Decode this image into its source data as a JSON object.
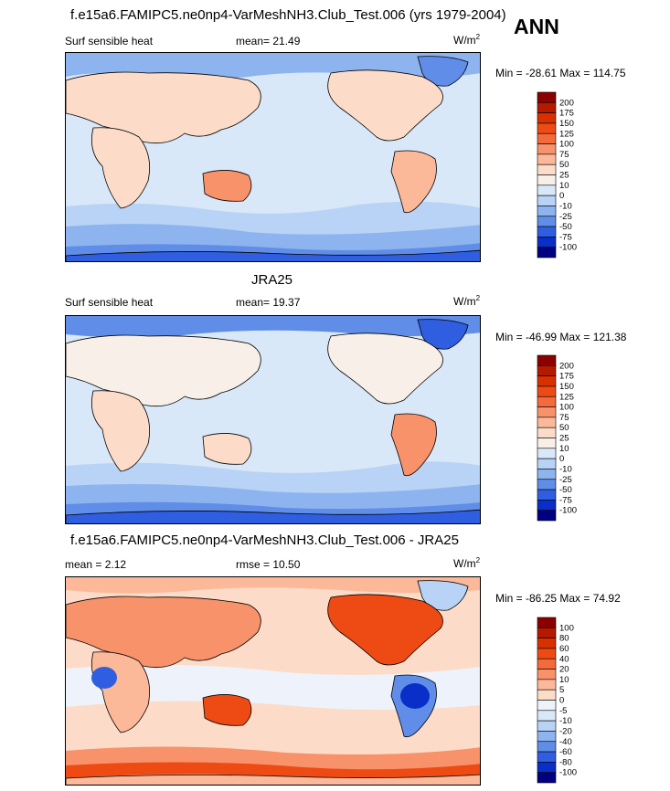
{
  "season": "ANN",
  "panels": [
    {
      "title": "f.e15a6.FAMIPC5.ne0np4-VarMeshNH3.Club_Test.006 (yrs 1979-2004)",
      "left_label": "Surf sensible heat",
      "center_label": "mean=  21.49",
      "units": "W/m",
      "units_sup": "2",
      "minmax": "Min = -28.61 Max = 114.75",
      "colorbar": {
        "levels": [
          "200",
          "175",
          "150",
          "125",
          "100",
          "75",
          "50",
          "25",
          "10",
          "0",
          "-10",
          "-25",
          "-50",
          "-75",
          "-100"
        ],
        "colors": [
          "#8b0000",
          "#b51a00",
          "#d93000",
          "#ed4a14",
          "#f46a3a",
          "#f8926a",
          "#fbb99a",
          "#fcdcc8",
          "#f7efe8",
          "#d9e8f8",
          "#b8d3f5",
          "#8db4ef",
          "#5f8de8",
          "#2f5fe0",
          "#0a2fc8",
          "#000080"
        ]
      }
    },
    {
      "title": "JRA25",
      "left_label": "Surf sensible heat",
      "center_label": "mean=  19.37",
      "units": "W/m",
      "units_sup": "2",
      "minmax": "Min = -46.99 Max = 121.38",
      "colorbar": {
        "levels": [
          "200",
          "175",
          "150",
          "125",
          "100",
          "75",
          "50",
          "25",
          "10",
          "0",
          "-10",
          "-25",
          "-50",
          "-75",
          "-100"
        ],
        "colors": [
          "#8b0000",
          "#b51a00",
          "#d93000",
          "#ed4a14",
          "#f46a3a",
          "#f8926a",
          "#fbb99a",
          "#fcdcc8",
          "#f7efe8",
          "#d9e8f8",
          "#b8d3f5",
          "#8db4ef",
          "#5f8de8",
          "#2f5fe0",
          "#0a2fc8",
          "#000080"
        ]
      }
    },
    {
      "title": "f.e15a6.FAMIPC5.ne0np4-VarMeshNH3.Club_Test.006 - JRA25",
      "left_label": "mean =   2.12",
      "center_label": "rmse =  10.50",
      "units": "W/m",
      "units_sup": "2",
      "minmax": "Min = -86.25 Max = 74.92",
      "colorbar": {
        "levels": [
          "100",
          "80",
          "60",
          "40",
          "20",
          "10",
          "5",
          "0",
          "-5",
          "-10",
          "-20",
          "-40",
          "-60",
          "-80",
          "-100"
        ],
        "colors": [
          "#8b0000",
          "#b51a00",
          "#d93000",
          "#ed4a14",
          "#f46a3a",
          "#f8926a",
          "#fbb99a",
          "#fcdcc8",
          "#eef3fb",
          "#d9e8f8",
          "#b8d3f5",
          "#8db4ef",
          "#5f8de8",
          "#2f5fe0",
          "#0a2fc8",
          "#000080"
        ]
      }
    }
  ],
  "chart_data": [
    {
      "type": "heatmap",
      "title": "f.e15a6.FAMIPC5.ne0np4-VarMeshNH3.Club_Test.006 (yrs 1979-2004)",
      "variable": "Surf sensible heat",
      "units": "W/m2",
      "mean": 21.49,
      "min": -28.61,
      "max": 114.75,
      "contour_levels": [
        -100,
        -75,
        -50,
        -25,
        -10,
        0,
        10,
        25,
        50,
        75,
        100,
        125,
        150,
        175,
        200
      ]
    },
    {
      "type": "heatmap",
      "title": "JRA25",
      "variable": "Surf sensible heat",
      "units": "W/m2",
      "mean": 19.37,
      "min": -46.99,
      "max": 121.38,
      "contour_levels": [
        -100,
        -75,
        -50,
        -25,
        -10,
        0,
        10,
        25,
        50,
        75,
        100,
        125,
        150,
        175,
        200
      ]
    },
    {
      "type": "heatmap",
      "title": "f.e15a6.FAMIPC5.ne0np4-VarMeshNH3.Club_Test.006 - JRA25",
      "units": "W/m2",
      "mean": 2.12,
      "rmse": 10.5,
      "min": -86.25,
      "max": 74.92,
      "contour_levels": [
        -100,
        -80,
        -60,
        -40,
        -20,
        -10,
        -5,
        0,
        5,
        10,
        20,
        40,
        60,
        80,
        100
      ]
    }
  ]
}
